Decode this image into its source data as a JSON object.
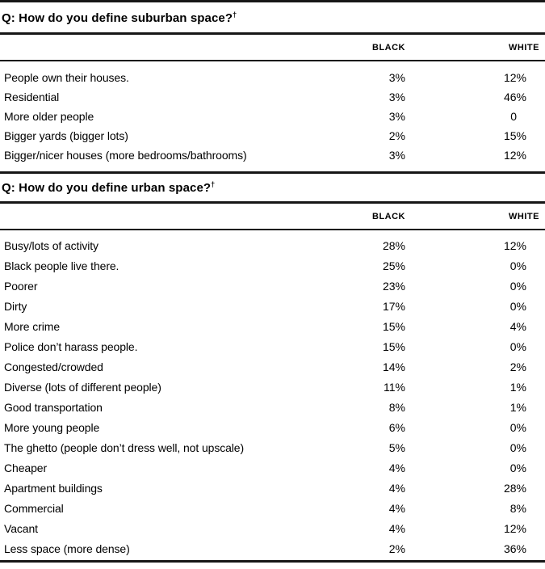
{
  "page": {
    "background": "#ffffff",
    "rule_color": "#161616",
    "text_color": "#000000"
  },
  "sections": [
    {
      "question": "Q: How do you define suburban space?",
      "dagger": "†",
      "columns": [
        "BLACK",
        "WHITE"
      ],
      "rows": [
        {
          "label": "People own their houses.",
          "black": "3%",
          "white": "12%"
        },
        {
          "label": "Residential",
          "black": "3%",
          "white": "46%"
        },
        {
          "label": "More older people",
          "black": "3%",
          "white": "0"
        },
        {
          "label": "Bigger yards (bigger lots)",
          "black": "2%",
          "white": "15%"
        },
        {
          "label": "Bigger/nicer houses (more bedrooms/bathrooms)",
          "black": "3%",
          "white": "12%"
        }
      ]
    },
    {
      "question": "Q: How do you define urban space?",
      "dagger": "†",
      "columns": [
        "BLACK",
        "WHITE"
      ],
      "rows": [
        {
          "label": "Busy/lots of activity",
          "black": "28%",
          "white": "12%"
        },
        {
          "label": "Black people live there.",
          "black": "25%",
          "white": "0%"
        },
        {
          "label": "Poorer",
          "black": "23%",
          "white": "0%"
        },
        {
          "label": "Dirty",
          "black": "17%",
          "white": "0%"
        },
        {
          "label": "More crime",
          "black": "15%",
          "white": "4%"
        },
        {
          "label": "Police don’t harass people.",
          "black": "15%",
          "white": "0%"
        },
        {
          "label": "Congested/crowded",
          "black": "14%",
          "white": "2%"
        },
        {
          "label": "Diverse (lots of different people)",
          "black": "11%",
          "white": "1%"
        },
        {
          "label": "Good transportation",
          "black": "8%",
          "white": "1%"
        },
        {
          "label": "More young people",
          "black": "6%",
          "white": "0%"
        },
        {
          "label": "The ghetto (people don’t dress well, not upscale)",
          "black": "5%",
          "white": "0%"
        },
        {
          "label": "Cheaper",
          "black": "4%",
          "white": "0%"
        },
        {
          "label": "Apartment buildings",
          "black": "4%",
          "white": "28%"
        },
        {
          "label": "Commercial",
          "black": "4%",
          "white": "8%"
        },
        {
          "label": "Vacant",
          "black": "4%",
          "white": "12%"
        },
        {
          "label": "Less space (more dense)",
          "black": "2%",
          "white": "36%"
        }
      ]
    }
  ]
}
